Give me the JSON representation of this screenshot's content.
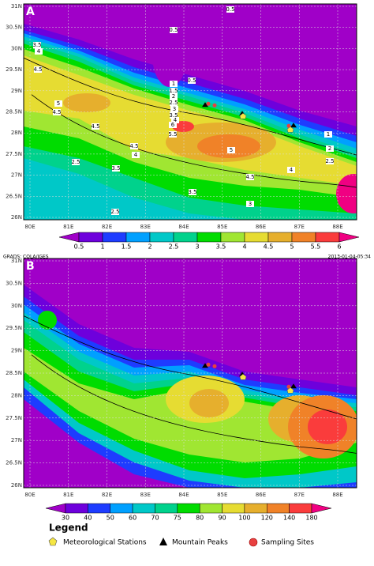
{
  "panels": [
    {
      "label": "A",
      "lat_labels": [
        "31N",
        "30.5N",
        "30N",
        "29.5N",
        "29N",
        "28.5N",
        "28N",
        "27.5N",
        "27N",
        "26.5N",
        "26N"
      ],
      "lon_labels": [
        "80E",
        "81E",
        "82E",
        "83E",
        "84E",
        "85E",
        "86E",
        "87E",
        "88E"
      ],
      "colorbar": {
        "levels": [
          0.5,
          1,
          1.5,
          2,
          2.5,
          3,
          3.5,
          4,
          4.5,
          5,
          5.5,
          6
        ],
        "colors": [
          "#a000c8",
          "#6e00dc",
          "#1e3cff",
          "#00a0ff",
          "#00c8c8",
          "#00d28c",
          "#00dc00",
          "#a0e632",
          "#e6dc32",
          "#e6af2d",
          "#f08228",
          "#fa3c3c",
          "#f00082"
        ]
      },
      "contour_labels": [
        "0.5",
        "0.5",
        "0.5",
        "3.5",
        "4",
        "4.5",
        "1",
        "1.5",
        "2",
        "2.5",
        "3",
        "3.5",
        "4",
        "5",
        "4.5",
        "4.5",
        "6",
        "5.5",
        "4.5",
        "4",
        "2.5",
        "5",
        "3.5",
        "4.5",
        "4",
        "3.5",
        "3",
        "2.5",
        "1",
        "2",
        "2.5"
      ]
    },
    {
      "label": "B",
      "lat_labels": [
        "31N",
        "30.5N",
        "30N",
        "29.5N",
        "29N",
        "28.5N",
        "28N",
        "27.5N",
        "27N",
        "26.5N",
        "26N"
      ],
      "lon_labels": [
        "80E",
        "81E",
        "82E",
        "83E",
        "84E",
        "85E",
        "86E",
        "87E",
        "88E"
      ],
      "colorbar": {
        "levels": [
          30,
          40,
          50,
          60,
          70,
          75,
          80,
          90,
          100,
          120,
          140,
          180
        ],
        "colors": [
          "#a000c8",
          "#6e00dc",
          "#1e3cff",
          "#00a0ff",
          "#00c8c8",
          "#00d28c",
          "#00dc00",
          "#a0e632",
          "#e6dc32",
          "#e6af2d",
          "#f08228",
          "#fa3c3c",
          "#f00082"
        ]
      }
    }
  ],
  "footer": "GRADS: COLA/IGES",
  "timestamp": "2013-01-04-05:34",
  "legend": {
    "title": "Legend",
    "items": [
      "Meteorological Stations",
      "Mountain Peaks",
      "Sampling Sites"
    ]
  }
}
